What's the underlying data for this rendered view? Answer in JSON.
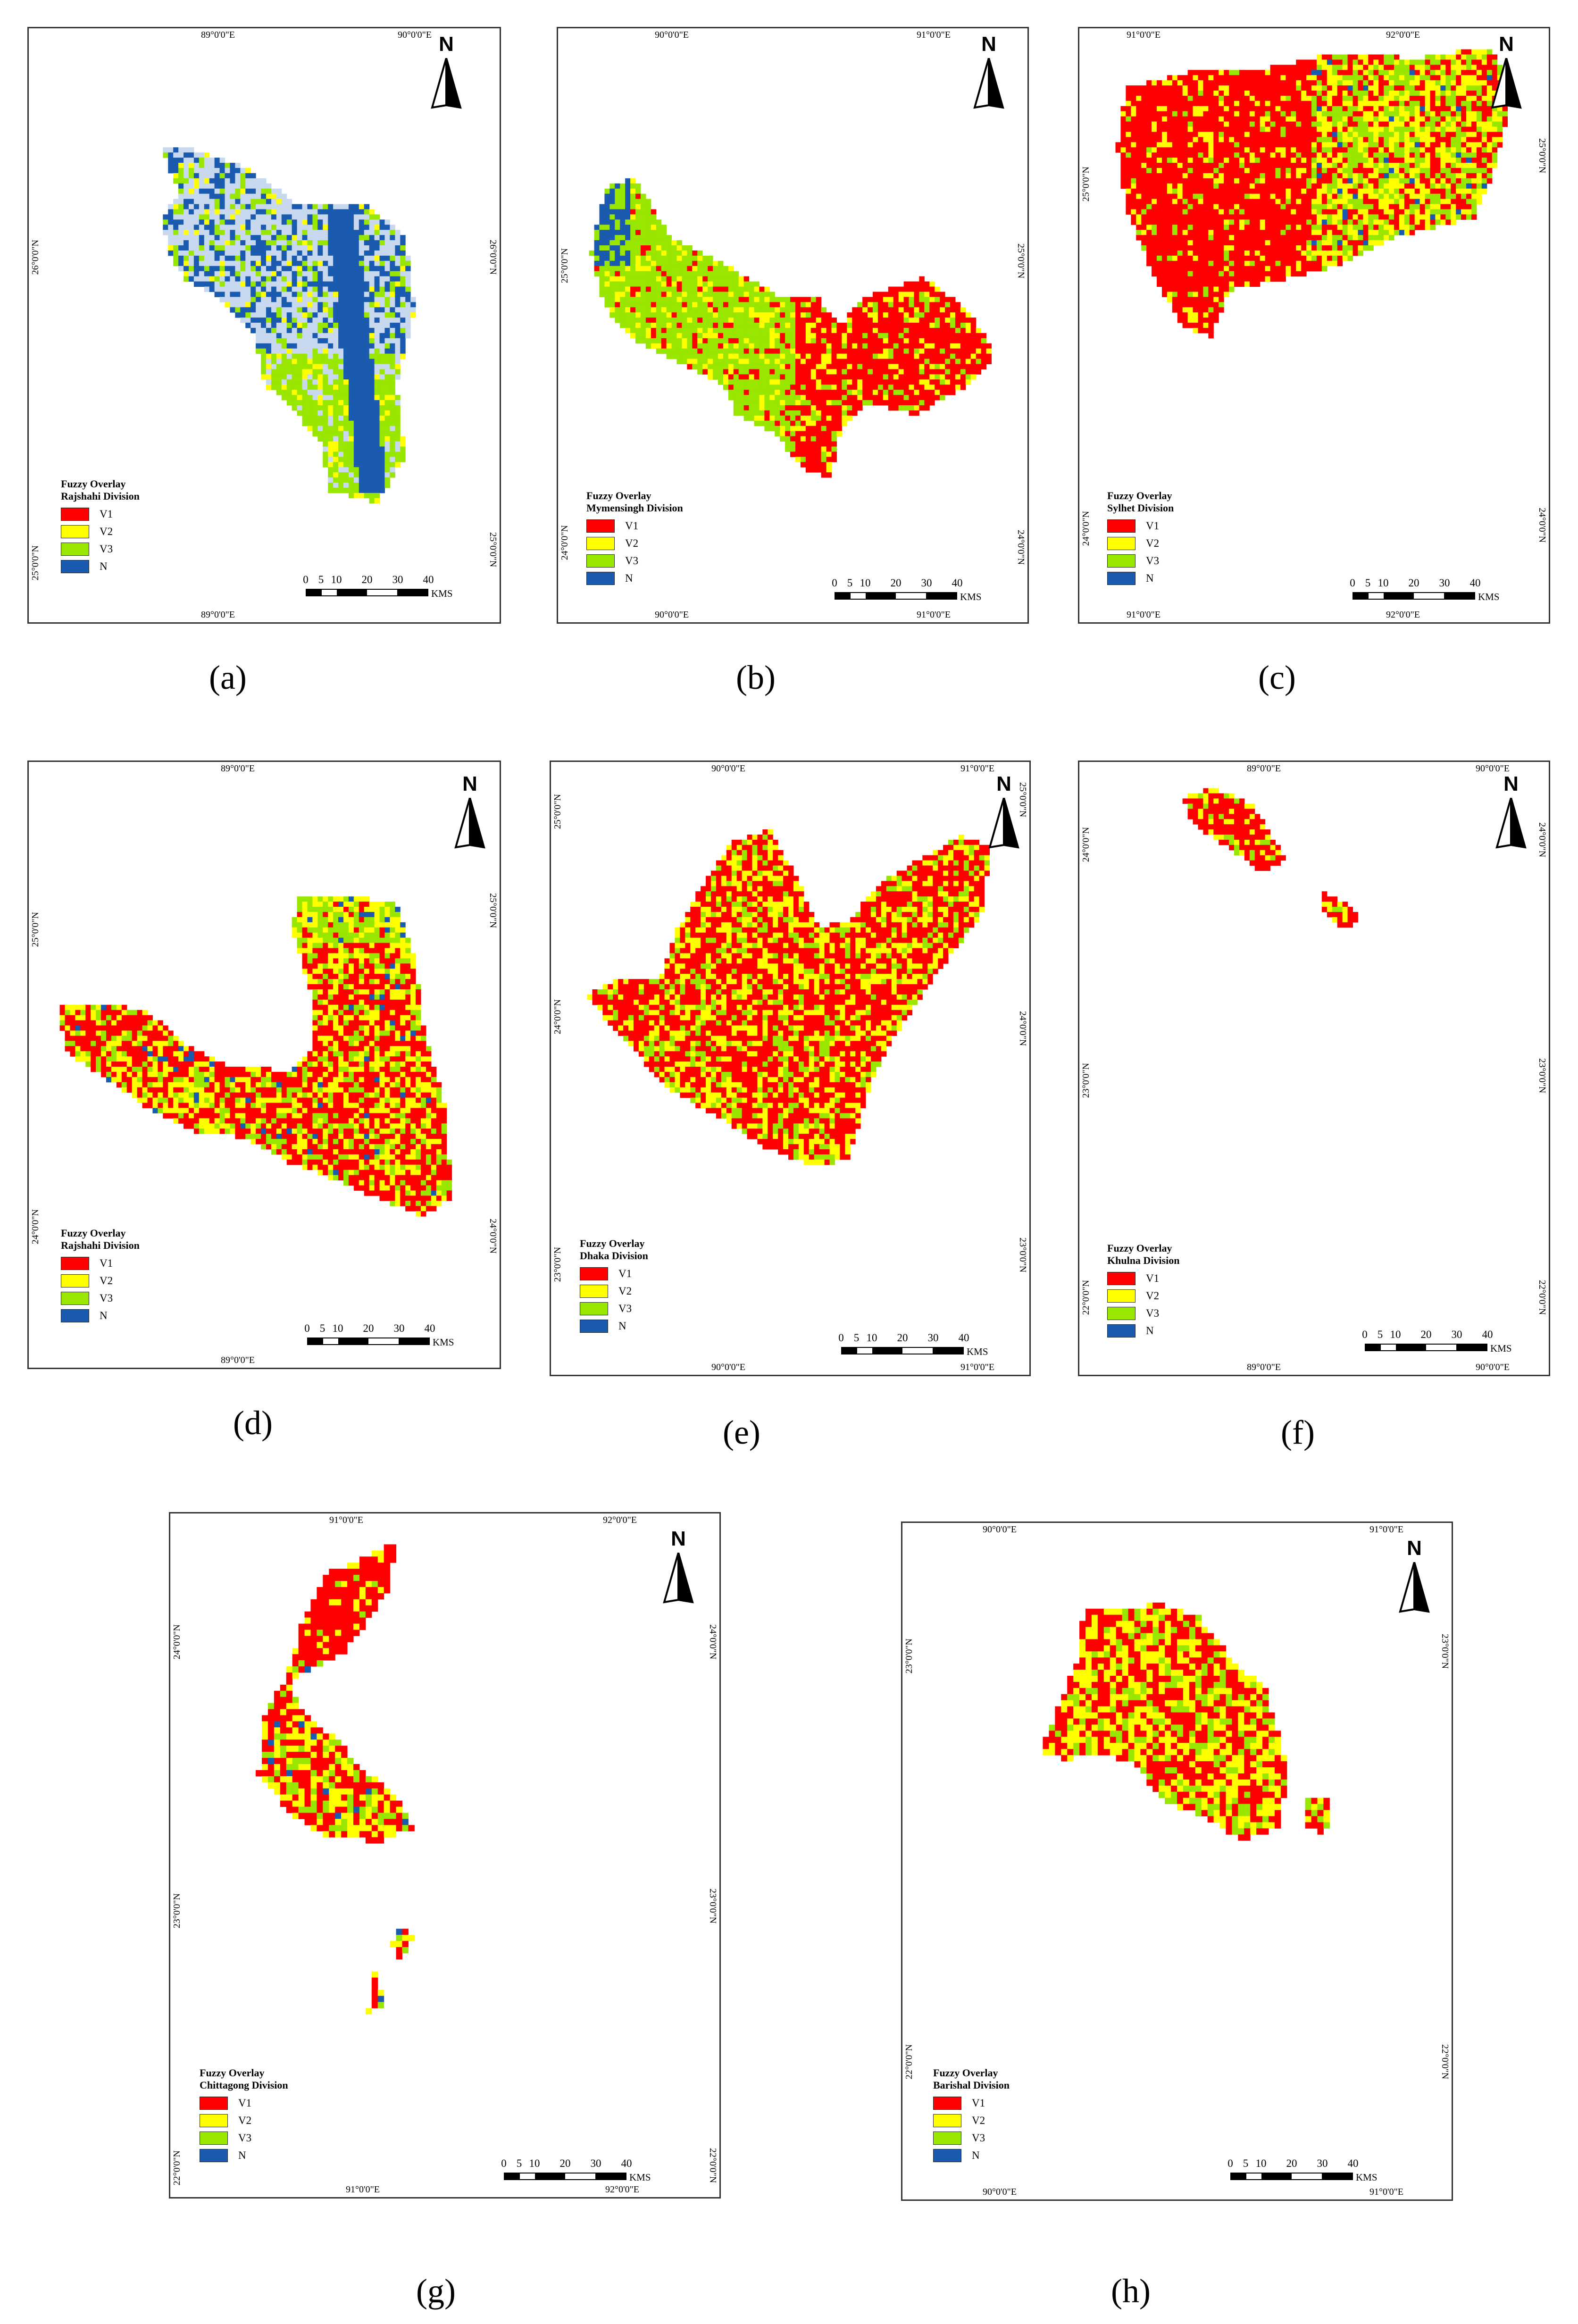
{
  "colors": {
    "V1": "#ff0000",
    "V2": "#ffff00",
    "V3": "#99e600",
    "N": "#1a5bb0",
    "N_light": "#c8d8ee"
  },
  "north_letter": "N",
  "scale": {
    "ticks": [
      "0",
      "5",
      "10",
      "20",
      "30",
      "40"
    ],
    "units": "KMS"
  },
  "panels": [
    {
      "caption": "(a)",
      "legend_title": "Fuzzy Overlay",
      "division": "Rajshahi Division",
      "top_labels": [
        "89°0'0\"E",
        "90°0'0\"E"
      ],
      "bottom_labels": [
        "89°0'0\"E"
      ],
      "left_labels": [
        "26°0'0\"N",
        "25°0'0\"N"
      ],
      "right_labels": [
        "26°0'0\"N",
        "25°0'0\"N"
      ],
      "legend": [
        "V1",
        "V2",
        "V3",
        "N"
      ]
    },
    {
      "caption": "(b)",
      "legend_title": "Fuzzy Overlay",
      "division": "Mymensingh Division",
      "top_labels": [
        "90°0'0\"E",
        "91°0'0\"E"
      ],
      "bottom_labels": [
        "90°0'0\"E",
        "91°0'0\"E"
      ],
      "left_labels": [
        "25°0'0\"N",
        "24°0'0\"N"
      ],
      "right_labels": [
        "25°0'0\"N",
        "24°0'0\"N"
      ],
      "legend": [
        "V1",
        "V2",
        "V3",
        "N"
      ]
    },
    {
      "caption": "(c)",
      "legend_title": "Fuzzy Overlay",
      "division": "Sylhet Division",
      "top_labels": [
        "91°0'0\"E",
        "92°0'0\"E"
      ],
      "bottom_labels": [
        "91°0'0\"E",
        "92°0'0\"E"
      ],
      "left_labels": [
        "25°0'0\"N",
        "24°0'0\"N"
      ],
      "right_labels": [
        "25°0'0\"N",
        "24°0'0\"N"
      ],
      "legend": [
        "V1",
        "V2",
        "V3",
        "N"
      ]
    },
    {
      "caption": "(d)",
      "legend_title": "Fuzzy Overlay",
      "division": "Rajshahi Division",
      "top_labels": [
        "89°0'0\"E"
      ],
      "bottom_labels": [
        "89°0'0\"E"
      ],
      "left_labels": [
        "25°0'0\"N",
        "24°0'0\"N"
      ],
      "right_labels": [
        "25°0'0\"N",
        "24°0'0\"N"
      ],
      "legend": [
        "V1",
        "V2",
        "V3",
        "N"
      ]
    },
    {
      "caption": "(e)",
      "legend_title": "Fuzzy Overlay",
      "division": "Dhaka Division",
      "top_labels": [
        "90°0'0\"E",
        "91°0'0\"E"
      ],
      "bottom_labels": [
        "90°0'0\"E",
        "91°0'0\"E"
      ],
      "left_labels": [
        "25°0'0\"N",
        "24°0'0\"N",
        "23°0'0\"N"
      ],
      "right_labels": [
        "25°0'0\"N",
        "24°0'0\"N",
        "23°0'0\"N"
      ],
      "legend": [
        "V1",
        "V2",
        "V3",
        "N"
      ]
    },
    {
      "caption": "(f)",
      "legend_title": "Fuzzy Overlay",
      "division": "Khulna Division",
      "top_labels": [
        "89°0'0\"E",
        "90°0'0\"E"
      ],
      "bottom_labels": [
        "89°0'0\"E",
        "90°0'0\"E"
      ],
      "left_labels": [
        "24°0'0\"N",
        "23°0'0\"N",
        "22°0'0\"N"
      ],
      "right_labels": [
        "24°0'0\"N",
        "23°0'0\"N",
        "22°0'0\"N"
      ],
      "legend": [
        "V1",
        "V2",
        "V3",
        "N"
      ]
    },
    {
      "caption": "(g)",
      "legend_title": "Fuzzy Overlay",
      "division": "Chittagong Division",
      "top_labels": [
        "91°0'0\"E",
        "92°0'0\"E"
      ],
      "bottom_labels": [
        "91°0'0\"E",
        "92°0'0\"E"
      ],
      "left_labels": [
        "24°0'0\"N",
        "23°0'0\"N",
        "22°0'0\"N"
      ],
      "right_labels": [
        "24°0'0\"N",
        "23°0'0\"N",
        "22°0'0\"N"
      ],
      "legend": [
        "V1",
        "V2",
        "V3",
        "N"
      ]
    },
    {
      "caption": "(h)",
      "legend_title": "Fuzzy Overlay",
      "division": "Barishal Division",
      "top_labels": [
        "90°0'0\"E",
        "91°0'0\"E"
      ],
      "bottom_labels": [
        "90°0'0\"E",
        "91°0'0\"E"
      ],
      "left_labels": [
        "23°0'0\"N",
        "22°0'0\"N"
      ],
      "right_labels": [
        "23°0'0\"N",
        "22°0'0\"N"
      ],
      "legend": [
        "V1",
        "V2",
        "V3",
        "N"
      ]
    }
  ]
}
